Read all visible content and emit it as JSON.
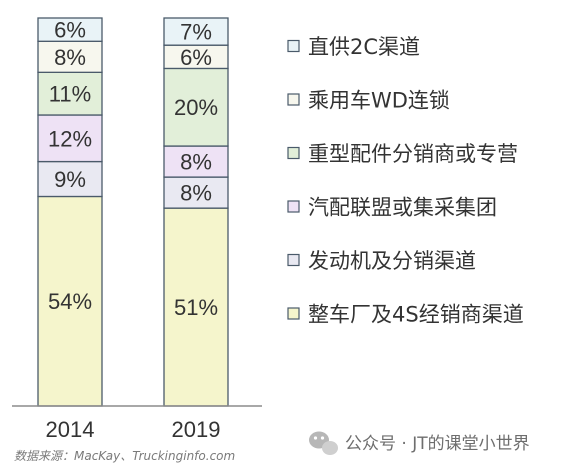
{
  "chart_data": {
    "type": "bar",
    "stacked": true,
    "percent": true,
    "categories": [
      "2014",
      "2019"
    ],
    "series": [
      {
        "name": "整车厂及4S经销商渠道",
        "values": [
          54,
          51
        ],
        "fill": "#f5f5cc"
      },
      {
        "name": "发动机及分销渠道",
        "values": [
          9,
          8
        ],
        "fill": "#e9e9f2"
      },
      {
        "name": "汽配联盟或集采集团",
        "values": [
          12,
          8
        ],
        "fill": "#eee2f5"
      },
      {
        "name": "重型配件分销商或专营",
        "values": [
          11,
          20
        ],
        "fill": "#e2efd9"
      },
      {
        "name": "乘用车WD连锁",
        "values": [
          8,
          6
        ],
        "fill": "#f7f7ee"
      },
      {
        "name": "直供2C渠道",
        "values": [
          6,
          7
        ],
        "fill": "#e9f3f7"
      }
    ],
    "legend_order": [
      "直供2C渠道",
      "乘用车WD连锁",
      "重型配件分销商或专营",
      "汽配联盟或集采集团",
      "发动机及分销渠道",
      "整车厂及4S经销商渠道"
    ],
    "legend_position": "right",
    "grid": false,
    "source": "数据来源：MacKay、Truckinginfo.com"
  },
  "watermark": "公众号 · JT的课堂小世界",
  "colors": {
    "border": "#4a5a6a",
    "text": "#333333",
    "axis": "#8c8c8c"
  }
}
